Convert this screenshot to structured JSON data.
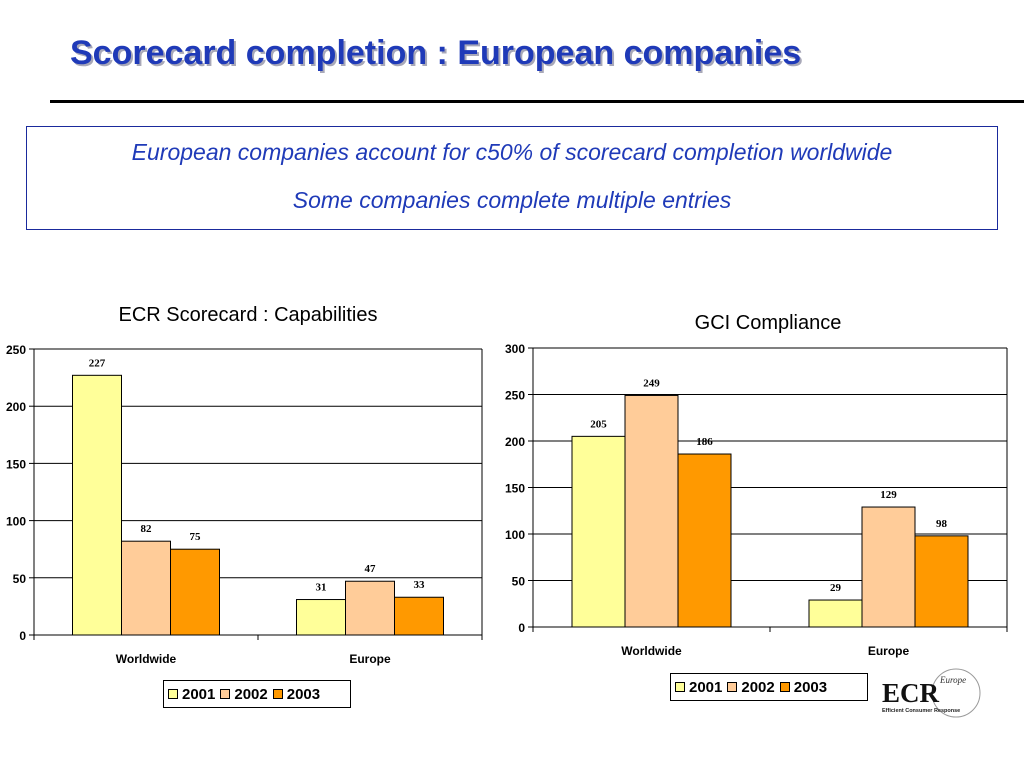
{
  "slide": {
    "title": "Scorecard completion  : European companies",
    "summary": [
      "European companies account for c50% of scorecard completion worldwide",
      "Some companies complete multiple entries"
    ]
  },
  "chart_data": [
    {
      "type": "bar",
      "title": "ECR Scorecard : Capabilities",
      "categories": [
        "Worldwide",
        "Europe"
      ],
      "series": [
        {
          "name": "2001",
          "values": [
            227,
            31
          ]
        },
        {
          "name": "2002",
          "values": [
            82,
            47
          ]
        },
        {
          "name": "2003",
          "values": [
            75,
            33
          ]
        }
      ],
      "ylim": [
        0,
        250
      ],
      "yticks": [
        0,
        50,
        100,
        150,
        200,
        250
      ],
      "grid": true,
      "legend": "bottom"
    },
    {
      "type": "bar",
      "title": "GCI Compliance",
      "categories": [
        "Worldwide",
        "Europe"
      ],
      "series": [
        {
          "name": "2001",
          "values": [
            205,
            29
          ]
        },
        {
          "name": "2002",
          "values": [
            249,
            129
          ]
        },
        {
          "name": "2003",
          "values": [
            186,
            98
          ]
        }
      ],
      "ylim": [
        0,
        300
      ],
      "yticks": [
        0,
        50,
        100,
        150,
        200,
        250,
        300
      ],
      "grid": true,
      "legend": "bottom"
    }
  ],
  "series_colors": [
    "#ffff99",
    "#ffcc99",
    "#ff9900"
  ],
  "logo": {
    "main": "ECR",
    "sub": "Europe",
    "tagline": "Efficient Consumer Response"
  }
}
